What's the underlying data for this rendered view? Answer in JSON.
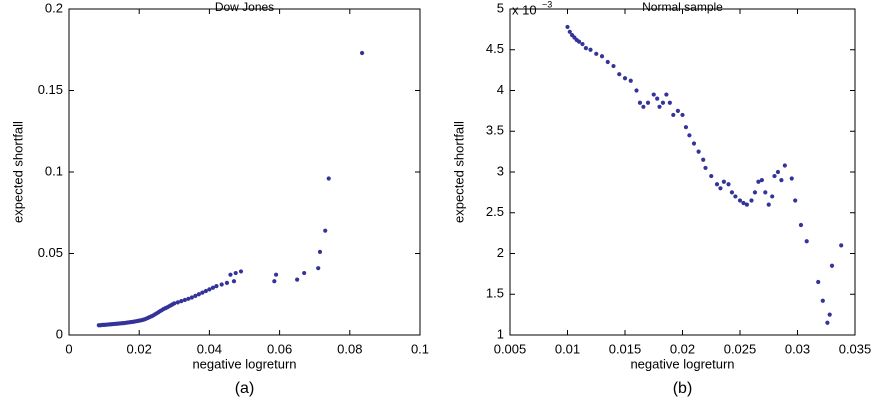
{
  "chart_data": [
    {
      "type": "scatter",
      "title": "Dow Jones",
      "xlabel": "negative logreturn",
      "ylabel": "expected shortfall",
      "caption": "(a)",
      "color": "#333399",
      "xlim": [
        0,
        0.1
      ],
      "xticks": [
        0,
        0.02,
        0.04,
        0.06,
        0.08,
        0.1
      ],
      "ylim": [
        0,
        0.2
      ],
      "yticks": [
        0,
        0.05,
        0.1,
        0.15,
        0.2
      ],
      "x": [
        0.0085,
        0.009,
        0.0095,
        0.01,
        0.0105,
        0.011,
        0.0115,
        0.012,
        0.0125,
        0.013,
        0.0135,
        0.014,
        0.0145,
        0.015,
        0.0155,
        0.016,
        0.0165,
        0.017,
        0.0175,
        0.018,
        0.0185,
        0.019,
        0.0195,
        0.02,
        0.0205,
        0.021,
        0.0215,
        0.022,
        0.0225,
        0.023,
        0.0235,
        0.024,
        0.0245,
        0.025,
        0.0255,
        0.026,
        0.0265,
        0.027,
        0.0275,
        0.028,
        0.0285,
        0.029,
        0.0295,
        0.03,
        0.031,
        0.032,
        0.033,
        0.034,
        0.035,
        0.036,
        0.037,
        0.038,
        0.039,
        0.04,
        0.041,
        0.042,
        0.0435,
        0.045,
        0.046,
        0.047,
        0.0475,
        0.049,
        0.0585,
        0.059,
        0.065,
        0.067,
        0.071,
        0.0715,
        0.073,
        0.074,
        0.0835
      ],
      "values": [
        0.006,
        0.006,
        0.0062,
        0.0062,
        0.0063,
        0.0064,
        0.0065,
        0.0066,
        0.0067,
        0.0068,
        0.0069,
        0.007,
        0.0071,
        0.0072,
        0.0073,
        0.0074,
        0.0076,
        0.0077,
        0.0079,
        0.008,
        0.0082,
        0.0084,
        0.0086,
        0.0088,
        0.009,
        0.0093,
        0.0096,
        0.01,
        0.0105,
        0.011,
        0.0115,
        0.012,
        0.0127,
        0.0133,
        0.014,
        0.0147,
        0.0153,
        0.016,
        0.0165,
        0.017,
        0.0176,
        0.0182,
        0.0188,
        0.0194,
        0.02,
        0.0208,
        0.0215,
        0.0222,
        0.023,
        0.024,
        0.025,
        0.026,
        0.027,
        0.028,
        0.029,
        0.03,
        0.031,
        0.032,
        0.037,
        0.033,
        0.038,
        0.039,
        0.033,
        0.037,
        0.034,
        0.038,
        0.041,
        0.051,
        0.064,
        0.096,
        0.173
      ]
    },
    {
      "type": "scatter",
      "title": "Normal sample",
      "xlabel": "negative logreturn",
      "ylabel": "expected shortfall",
      "caption": "(b)",
      "axis_multiplier": {
        "base": "x 10",
        "exponent": "−3"
      },
      "color": "#333399",
      "xlim": [
        0.005,
        0.035
      ],
      "xticks": [
        0.005,
        0.01,
        0.015,
        0.02,
        0.025,
        0.03,
        0.035
      ],
      "ylim": [
        1,
        5
      ],
      "yticks": [
        1,
        1.5,
        2,
        2.5,
        3,
        3.5,
        4,
        4.5,
        5
      ],
      "x": [
        0.01,
        0.0102,
        0.0104,
        0.0106,
        0.0108,
        0.011,
        0.0113,
        0.0116,
        0.012,
        0.0125,
        0.013,
        0.0135,
        0.014,
        0.0145,
        0.015,
        0.0155,
        0.016,
        0.0163,
        0.0166,
        0.017,
        0.0175,
        0.0178,
        0.018,
        0.0183,
        0.0186,
        0.0189,
        0.0192,
        0.0196,
        0.02,
        0.0203,
        0.0206,
        0.021,
        0.0214,
        0.0218,
        0.022,
        0.0225,
        0.023,
        0.0233,
        0.0236,
        0.024,
        0.0243,
        0.0246,
        0.025,
        0.0253,
        0.0256,
        0.026,
        0.0263,
        0.0266,
        0.0269,
        0.0272,
        0.0275,
        0.0278,
        0.028,
        0.0283,
        0.0286,
        0.0289,
        0.0295,
        0.0298,
        0.0303,
        0.0308,
        0.0318,
        0.0322,
        0.0326,
        0.0328,
        0.033,
        0.0338
      ],
      "values": [
        4.78,
        4.72,
        4.68,
        4.65,
        4.62,
        4.6,
        4.57,
        4.52,
        4.5,
        4.45,
        4.42,
        4.35,
        4.3,
        4.2,
        4.15,
        4.12,
        4.0,
        3.85,
        3.8,
        3.85,
        3.95,
        3.9,
        3.8,
        3.85,
        3.95,
        3.85,
        3.7,
        3.75,
        3.7,
        3.55,
        3.45,
        3.35,
        3.25,
        3.15,
        3.05,
        2.95,
        2.85,
        2.8,
        2.88,
        2.85,
        2.75,
        2.7,
        2.65,
        2.62,
        2.6,
        2.65,
        2.75,
        2.88,
        2.9,
        2.75,
        2.6,
        2.7,
        2.95,
        3.0,
        2.9,
        3.08,
        2.92,
        2.65,
        2.35,
        2.15,
        1.65,
        1.42,
        1.15,
        1.25,
        1.85,
        2.1
      ]
    }
  ]
}
